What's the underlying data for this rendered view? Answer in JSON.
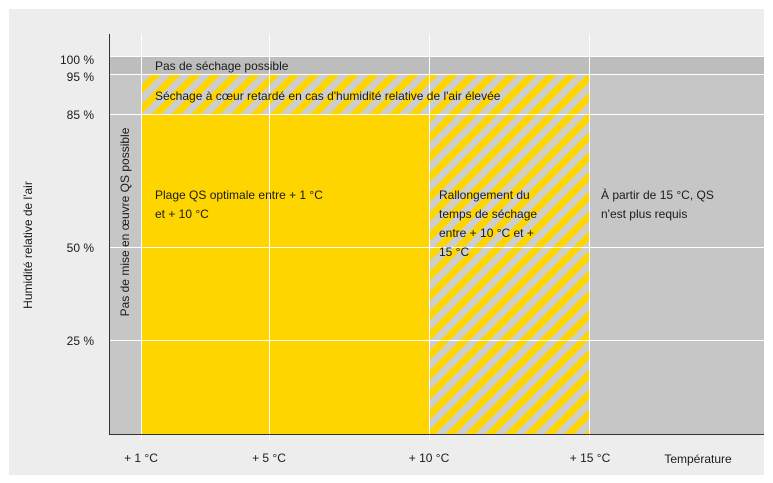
{
  "y_axis": {
    "title": "Humidité relative de l'air",
    "ticks": [
      {
        "label": "100 %",
        "value": 100
      },
      {
        "label": "95 %",
        "value": 95
      },
      {
        "label": "85 %",
        "value": 85
      },
      {
        "label": "50 %",
        "value": 50
      },
      {
        "label": "25 %",
        "value": 25
      }
    ]
  },
  "x_axis": {
    "title": "Température",
    "ticks": [
      {
        "label": "+ 1 °C",
        "value": 1
      },
      {
        "label": "+ 5 °C",
        "value": 5
      },
      {
        "label": "+ 10 °C",
        "value": 10
      },
      {
        "label": "+ 15 °C",
        "value": 15
      }
    ]
  },
  "zones": {
    "no_drying": "Pas de séchage possible",
    "core_drying": "Séchage à cœur retardé en cas d'humidité relative de l'air élevée",
    "no_application": "Pas de mise en œuvre QS possible",
    "optimal": [
      "Plage QS optimale entre + 1 °C",
      "et + 10 °C"
    ],
    "extended": [
      "Rallongement du",
      "temps de séchage",
      "entre + 10 °C et +",
      "15 °C"
    ],
    "not_required": [
      "À partir de 15 °C, QS",
      "n'est plus requis"
    ]
  },
  "colors": {
    "background": "#ededed",
    "zone_gray": "#c6c6c6",
    "zone_gray_dark": "#bdbdbd",
    "yellow": "#ffd500",
    "stripe": "#cdcdcd",
    "grid": "#ffffff",
    "axis": "#333333"
  }
}
